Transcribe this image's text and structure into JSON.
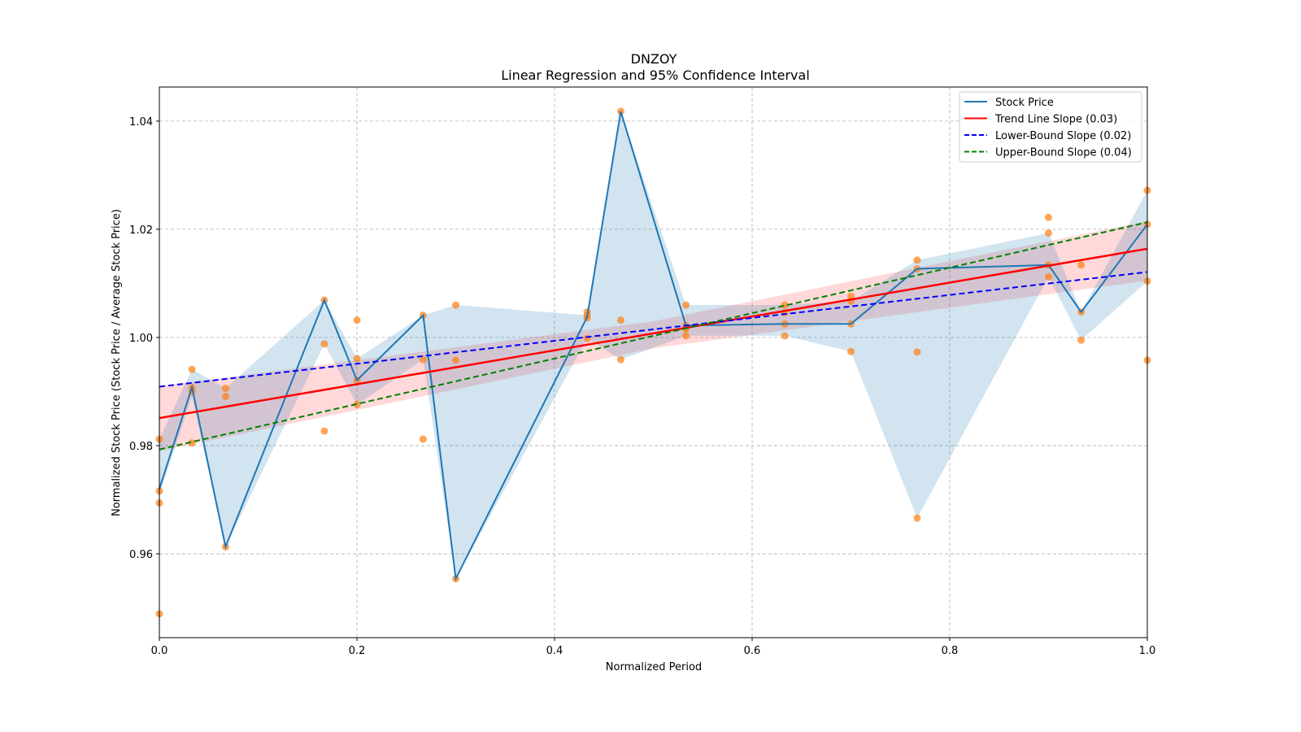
{
  "chart_data": {
    "type": "line",
    "title": "DNZOY",
    "subtitle": "Linear Regression and 95% Confidence Interval",
    "xlabel": "Normalized Period",
    "ylabel": "Normalized Stock Price (Stock Price / Average Stock Price)",
    "xlim": [
      0,
      1
    ],
    "ylim": [
      0.9445,
      1.0463
    ],
    "xticks": [
      0.0,
      0.2,
      0.4,
      0.6,
      0.8,
      1.0
    ],
    "xtick_labels": [
      "0.0",
      "0.2",
      "0.4",
      "0.6",
      "0.8",
      "1.0"
    ],
    "yticks": [
      0.96,
      0.98,
      1.0,
      1.02,
      1.04
    ],
    "ytick_labels": [
      "0.96",
      "0.98",
      "1.00",
      "1.02",
      "1.04"
    ],
    "grid": true,
    "legend_position": "top-right",
    "legend": [
      {
        "label": "Stock Price",
        "color": "#1f77b4",
        "style": "solid"
      },
      {
        "label": "Trend Line Slope (0.03)",
        "color": "#ff0000",
        "style": "solid"
      },
      {
        "label": "Lower-Bound Slope (0.02)",
        "color": "#0000ff",
        "style": "dashed"
      },
      {
        "label": "Upper-Bound Slope (0.04)",
        "color": "#008000",
        "style": "dashed"
      }
    ],
    "stock_price": {
      "x": [
        0,
        0.033,
        0.067,
        0.167,
        0.2,
        0.267,
        0.3,
        0.433,
        0.467,
        0.533,
        0.633,
        0.7,
        0.767,
        0.9,
        0.933,
        1.0
      ],
      "y": [
        0.972,
        0.9908,
        0.9613,
        1.0069,
        0.9921,
        1.0041,
        0.9554,
        1.0038,
        1.0418,
        1.0022,
        1.0025,
        1.0025,
        1.0127,
        1.0134,
        1.0047,
        1.0209
      ],
      "band_lower": [
        0.971,
        0.989,
        0.9613,
        0.9988,
        0.9876,
        0.9959,
        0.9554,
        0.9998,
        0.9959,
        1.0003,
        1.0003,
        0.9974,
        0.9666,
        1.0112,
        0.9995,
        1.0104
      ],
      "band_upper": [
        0.9812,
        0.9941,
        0.9906,
        1.0069,
        0.9961,
        1.0041,
        1.006,
        1.0041,
        1.0418,
        1.006,
        1.006,
        1.0067,
        1.0143,
        1.0193,
        1.0047,
        1.0272
      ]
    },
    "scatter": [
      [
        0,
        0.9812
      ],
      [
        0,
        0.9716
      ],
      [
        0,
        0.9694
      ],
      [
        0,
        0.9489
      ],
      [
        0.033,
        0.9941
      ],
      [
        0.033,
        0.9907
      ],
      [
        0.033,
        0.99
      ],
      [
        0.033,
        0.9805
      ],
      [
        0.067,
        0.9906
      ],
      [
        0.067,
        0.9891
      ],
      [
        0.067,
        0.9613
      ],
      [
        0.167,
        1.0069
      ],
      [
        0.167,
        0.9988
      ],
      [
        0.167,
        0.9827
      ],
      [
        0.2,
        1.0032
      ],
      [
        0.2,
        0.9961
      ],
      [
        0.2,
        0.9921
      ],
      [
        0.2,
        0.9876
      ],
      [
        0.267,
        1.0041
      ],
      [
        0.267,
        0.9959
      ],
      [
        0.267,
        0.9812
      ],
      [
        0.3,
        1.006
      ],
      [
        0.3,
        0.9958
      ],
      [
        0.3,
        0.9554
      ],
      [
        0.433,
        1.0047
      ],
      [
        0.433,
        1.0041
      ],
      [
        0.433,
        1.0036
      ],
      [
        0.433,
        0.9998
      ],
      [
        0.467,
        1.0418
      ],
      [
        0.467,
        1.0032
      ],
      [
        0.467,
        0.9959
      ],
      [
        0.533,
        1.006
      ],
      [
        0.533,
        1.0022
      ],
      [
        0.533,
        1.0016
      ],
      [
        0.533,
        1.0003
      ],
      [
        0.633,
        1.006
      ],
      [
        0.633,
        1.0046
      ],
      [
        0.633,
        1.0025
      ],
      [
        0.633,
        1.0003
      ],
      [
        0.7,
        1.0076
      ],
      [
        0.7,
        1.0067
      ],
      [
        0.7,
        1.0025
      ],
      [
        0.7,
        0.9974
      ],
      [
        0.767,
        1.0143
      ],
      [
        0.767,
        1.0127
      ],
      [
        0.767,
        0.9973
      ],
      [
        0.767,
        0.9666
      ],
      [
        0.9,
        1.0222
      ],
      [
        0.9,
        1.0193
      ],
      [
        0.9,
        1.0134
      ],
      [
        0.9,
        1.0112
      ],
      [
        0.933,
        1.0134
      ],
      [
        0.933,
        1.0047
      ],
      [
        0.933,
        0.9995
      ],
      [
        1.0,
        1.0272
      ],
      [
        1.0,
        1.0209
      ],
      [
        1.0,
        1.0104
      ],
      [
        1.0,
        0.9958
      ]
    ],
    "trend_line": {
      "intercept": 0.9851,
      "slope": 0.0313
    },
    "lower_bound_line": {
      "intercept": 0.9909,
      "slope": 0.0212
    },
    "upper_bound_line": {
      "intercept": 0.9793,
      "slope": 0.042
    },
    "confidence_interval": {
      "x": [
        0,
        0.5,
        1.0
      ],
      "lower": [
        0.979,
        0.998,
        1.0105
      ],
      "upper": [
        0.991,
        1.003,
        1.0215
      ]
    }
  }
}
